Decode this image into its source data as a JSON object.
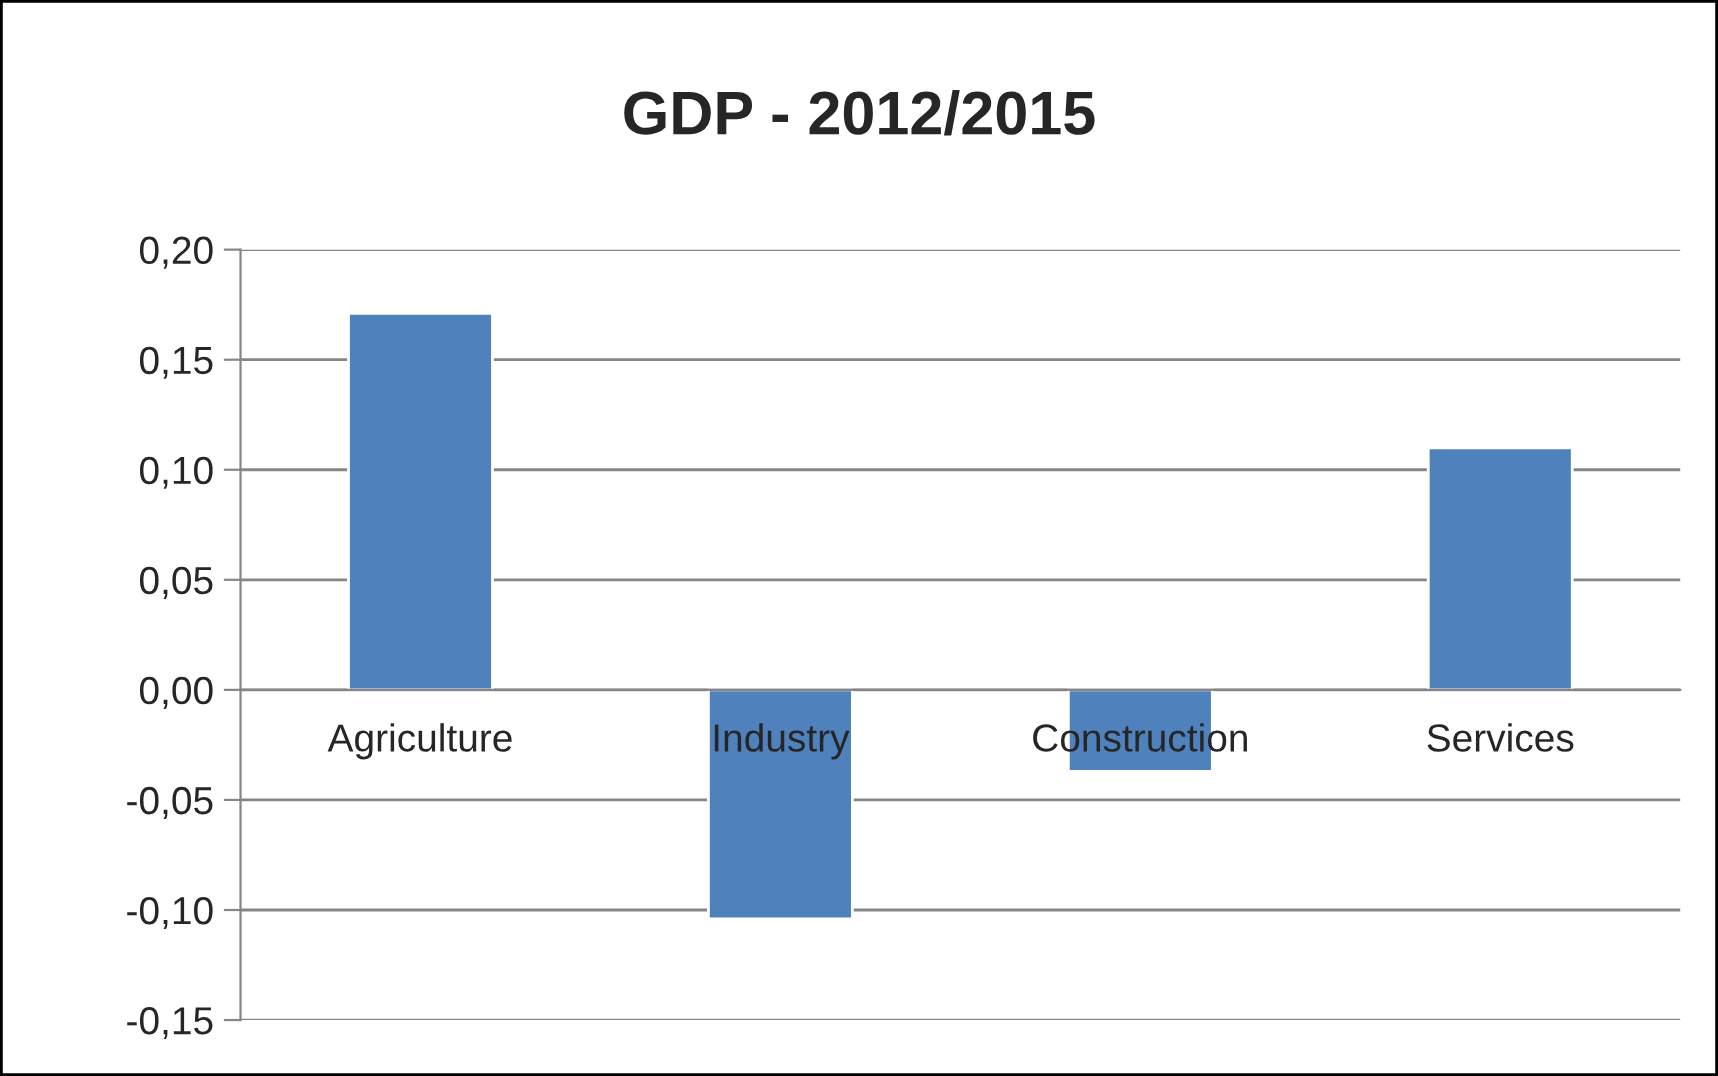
{
  "chart_data": {
    "type": "bar",
    "title": "GDP - 2012/2015",
    "categories": [
      "Agriculture",
      "Industry",
      "Construction",
      "Services"
    ],
    "values": [
      0.171,
      -0.104,
      -0.037,
      0.11
    ],
    "color": "#4f81bd",
    "ylim": [
      -0.15,
      0.2
    ],
    "yticks": [
      {
        "value": -0.15,
        "label": "-0,15"
      },
      {
        "value": -0.1,
        "label": "-0,10"
      },
      {
        "value": -0.05,
        "label": "-0,05"
      },
      {
        "value": 0,
        "label": "0,00"
      },
      {
        "value": 0.05,
        "label": "0,05"
      },
      {
        "value": 0.1,
        "label": "0,10"
      },
      {
        "value": 0.15,
        "label": "0,15"
      },
      {
        "value": 0.2,
        "label": "0,20"
      }
    ],
    "grid": "y",
    "legend": false
  }
}
